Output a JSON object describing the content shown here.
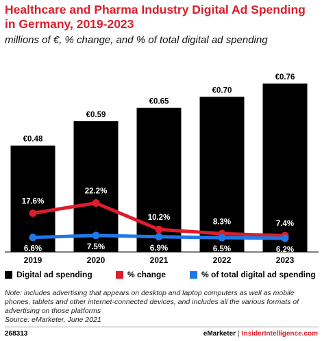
{
  "title": "Healthcare and Pharma Industry Digital Ad Spending in Germany, 2019-2023",
  "subtitle": "millions of €, % change, and % of total digital ad spending",
  "colors": {
    "bar": "#000000",
    "change": "#dc1e2a",
    "share": "#1f78e6",
    "title": "#dc1e2a"
  },
  "chart_data": {
    "type": "bar",
    "categories": [
      "2019",
      "2020",
      "2021",
      "2022",
      "2023"
    ],
    "series": [
      {
        "name": "Digital ad spending",
        "type": "bar",
        "values": [
          0.48,
          0.59,
          0.65,
          0.7,
          0.76
        ],
        "labels": [
          "€0.48",
          "€0.59",
          "€0.65",
          "€0.70",
          "€0.76"
        ]
      },
      {
        "name": "% change",
        "type": "line",
        "values": [
          17.6,
          22.2,
          10.2,
          8.3,
          7.4
        ],
        "labels": [
          "17.6%",
          "22.2%",
          "10.2%",
          "8.3%",
          "7.4%"
        ]
      },
      {
        "name": "% of total digital ad spending",
        "type": "line",
        "values": [
          6.6,
          7.5,
          6.9,
          6.5,
          6.2
        ],
        "labels": [
          "6.6%",
          "7.5%",
          "6.9%",
          "6.5%",
          "6.2%"
        ]
      }
    ],
    "legend": "bottom",
    "grid": false
  },
  "legend": {
    "bar": "Digital ad spending",
    "change": "% change",
    "share": "% of total digital ad spending"
  },
  "note": "Note: includes advertising that appears on desktop and laptop computers as well as mobile phones, tablets and other internet-connected devices, and includes all the various formats of advertising on those platforms",
  "source": "Source: eMarketer, June 2021",
  "footer": {
    "id": "268313",
    "brand1": "eMarketer",
    "sep": "|",
    "brand2": "InsiderIntelligence.com"
  }
}
